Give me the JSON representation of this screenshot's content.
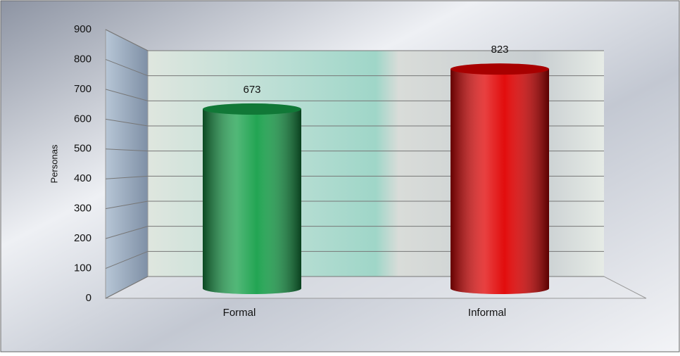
{
  "chart_data": {
    "type": "bar",
    "y_label": "Personas",
    "categories": [
      "Formal",
      "Informal"
    ],
    "values": [
      673,
      823
    ],
    "colors": [
      "#17a04a",
      "#e00000"
    ],
    "ylim": [
      0,
      900
    ],
    "yticks": [
      0,
      100,
      200,
      300,
      400,
      500,
      600,
      700,
      800,
      900
    ],
    "grid": true
  }
}
